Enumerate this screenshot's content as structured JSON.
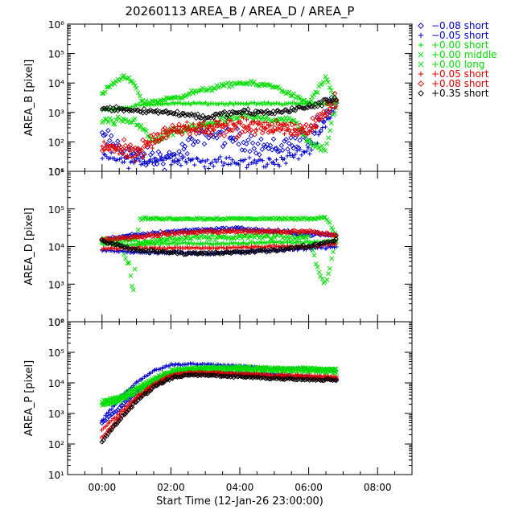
{
  "chart_data": {
    "type": "scatter",
    "title": "20260113 AREA_B / AREA_D / AREA_P",
    "xlabel": "Start Time (12-Jan-26 23:00:00)",
    "x_unit": "hours after start time",
    "xlim": [
      -1.0,
      9.0
    ],
    "x_ticks": [
      {
        "value": 0,
        "label": "00:00"
      },
      {
        "value": 2,
        "label": "02:00"
      },
      {
        "value": 4,
        "label": "04:00"
      },
      {
        "value": 6,
        "label": "06:00"
      },
      {
        "value": 8,
        "label": "08:00"
      }
    ],
    "yscale": "log",
    "legend_position": "right, outside plot",
    "legend": [
      {
        "label": "−0.08 short",
        "color": "#0000cc",
        "symbol": "diamond"
      },
      {
        "label": "−0.05 short",
        "color": "#0000cc",
        "symbol": "plus"
      },
      {
        "label": "+0.00 short",
        "color": "#00dd00",
        "symbol": "plus"
      },
      {
        "label": "+0.00 middle",
        "color": "#00dd00",
        "symbol": "cross"
      },
      {
        "label": "+0.00 long",
        "color": "#00dd00",
        "symbol": "cross"
      },
      {
        "label": "+0.05 short",
        "color": "#dd0000",
        "symbol": "plus"
      },
      {
        "label": "+0.08 short",
        "color": "#dd0000",
        "symbol": "diamond"
      },
      {
        "label": "+0.35 short",
        "color": "#000000",
        "symbol": "diamond"
      }
    ],
    "panels": [
      {
        "ylabel": "AREA_B [pixel]",
        "ylim": [
          10,
          1000000
        ],
        "y_ticks": [
          {
            "value": 10,
            "label": "10¹"
          },
          {
            "value": 100,
            "label": "10²"
          },
          {
            "value": 1000,
            "label": "10³"
          },
          {
            "value": 10000,
            "label": "10⁴"
          },
          {
            "value": 100000,
            "label": "10⁵"
          },
          {
            "value": 1000000,
            "label": "10⁶"
          }
        ],
        "series": [
          {
            "color": "#0000cc",
            "symbol": "diamond",
            "x": [
              0.0,
              1.0,
              2.0,
              3.0,
              4.0,
              5.0,
              6.0,
              6.8
            ],
            "y": [
              150,
              30,
              25,
              200,
              120,
              60,
              150,
              2000
            ],
            "spread": 0.5
          },
          {
            "color": "#0000cc",
            "symbol": "plus",
            "x": [
              0.0,
              1.0,
              2.0,
              3.0,
              4.0,
              5.0,
              6.0,
              6.8
            ],
            "y": [
              30,
              20,
              30,
              20,
              20,
              20,
              50,
              2000
            ],
            "spread": 0.3
          },
          {
            "color": "#00dd00",
            "symbol": "plus",
            "x": [
              0.0,
              0.8,
              1.0,
              2.0,
              3.0,
              4.0,
              5.0,
              6.0,
              6.8
            ],
            "y": [
              1200,
              1500,
              1800,
              2000,
              2000,
              2000,
              2000,
              2000,
              2000
            ],
            "spread": 0.06
          },
          {
            "color": "#00dd00",
            "symbol": "cross",
            "x": [
              0.0,
              0.3,
              0.6,
              0.9,
              1.2,
              2.0,
              3.0,
              4.0,
              5.0,
              6.0,
              6.5,
              6.8
            ],
            "y": [
              4000,
              9000,
              15000,
              12000,
              2000,
              3000,
              6000,
              10000,
              8000,
              2000,
              15000,
              2000
            ],
            "spread": 0.12
          },
          {
            "color": "#00dd00",
            "symbol": "cross",
            "x": [
              0.0,
              0.5,
              1.0,
              1.5,
              2.0,
              3.0,
              4.0,
              5.0,
              5.5,
              6.0,
              6.5,
              6.8
            ],
            "y": [
              500,
              500,
              500,
              100,
              200,
              400,
              700,
              600,
              600,
              100,
              50,
              2000
            ],
            "spread": 0.2
          },
          {
            "color": "#dd0000",
            "symbol": "plus",
            "x": [
              0.0,
              1.0,
              2.0,
              3.0,
              4.0,
              5.0,
              6.0,
              6.8
            ],
            "y": [
              80,
              30,
              300,
              300,
              500,
              300,
              200,
              2000
            ],
            "spread": 0.3
          },
          {
            "color": "#dd0000",
            "symbol": "diamond",
            "x": [
              0.0,
              1.0,
              2.0,
              3.0,
              4.0,
              5.0,
              6.0,
              6.8
            ],
            "y": [
              60,
              60,
              250,
              300,
              250,
              300,
              300,
              3000
            ],
            "spread": 0.35
          },
          {
            "color": "#000000",
            "symbol": "diamond",
            "x": [
              0.0,
              1.0,
              2.0,
              3.0,
              4.0,
              5.0,
              6.0,
              6.8
            ],
            "y": [
              1500,
              1200,
              1000,
              700,
              1000,
              1000,
              1500,
              3000
            ],
            "spread": 0.15
          }
        ]
      },
      {
        "ylabel": "AREA_D [pixel]",
        "ylim": [
          100,
          1000000
        ],
        "y_ticks": [
          {
            "value": 100,
            "label": "10²"
          },
          {
            "value": 1000,
            "label": "10³"
          },
          {
            "value": 10000,
            "label": "10⁴"
          },
          {
            "value": 100000,
            "label": "10⁵"
          },
          {
            "value": 1000000,
            "label": "10⁶"
          }
        ],
        "series": [
          {
            "color": "#0000cc",
            "symbol": "diamond",
            "x": [
              0.0,
              1.0,
              2.0,
              3.0,
              4.0,
              5.0,
              6.0,
              6.8
            ],
            "y": [
              15000,
              20000,
              25000,
              28000,
              30000,
              25000,
              22000,
              20000
            ],
            "spread": 0.06
          },
          {
            "color": "#0000cc",
            "symbol": "plus",
            "x": [
              0.0,
              1.0,
              2.0,
              3.0,
              4.0,
              5.0,
              6.0,
              6.8
            ],
            "y": [
              8000,
              7000,
              7000,
              6500,
              7000,
              8000,
              9000,
              10000
            ],
            "spread": 0.05
          },
          {
            "color": "#00dd00",
            "symbol": "plus",
            "x": [
              0.0,
              1.0,
              2.0,
              3.0,
              4.0,
              5.0,
              6.0,
              6.8
            ],
            "y": [
              12000,
              11000,
              12000,
              12000,
              12000,
              13000,
              13000,
              15000
            ],
            "spread": 0.05
          },
          {
            "color": "#00dd00",
            "symbol": "cross",
            "x": [
              0.0,
              1.0,
              1.1,
              2.0,
              3.0,
              4.0,
              5.0,
              6.0,
              6.5,
              6.8
            ],
            "y": [
              15000,
              15000,
              55000,
              55000,
              55000,
              55000,
              55000,
              55000,
              60000,
              20000
            ],
            "spread": 0.04
          },
          {
            "color": "#00dd00",
            "symbol": "cross",
            "x": [
              0.0,
              0.5,
              0.8,
              0.9,
              1.0,
              2.0,
              3.0,
              4.0,
              5.0,
              6.0,
              6.3,
              6.5,
              6.8
            ],
            "y": [
              15000,
              12000,
              3000,
              500,
              12000,
              16000,
              17000,
              18000,
              18000,
              17000,
              2000,
              1000,
              15000
            ],
            "spread": 0.1
          },
          {
            "color": "#dd0000",
            "symbol": "plus",
            "x": [
              0.0,
              1.0,
              2.0,
              3.0,
              4.0,
              5.0,
              6.0,
              6.8
            ],
            "y": [
              9000,
              9000,
              9000,
              9000,
              9500,
              10000,
              10000,
              12000
            ],
            "spread": 0.05
          },
          {
            "color": "#dd0000",
            "symbol": "diamond",
            "x": [
              0.0,
              1.0,
              2.0,
              3.0,
              4.0,
              5.0,
              6.0,
              6.8
            ],
            "y": [
              15000,
              18000,
              22000,
              25000,
              25000,
              25000,
              25000,
              20000
            ],
            "spread": 0.06
          },
          {
            "color": "#000000",
            "symbol": "diamond",
            "x": [
              0.0,
              1.0,
              2.0,
              3.0,
              4.0,
              5.0,
              6.0,
              6.8
            ],
            "y": [
              14000,
              8000,
              7000,
              6500,
              7000,
              8000,
              10000,
              15000
            ],
            "spread": 0.06
          }
        ]
      },
      {
        "ylabel": "AREA_P [pixel]",
        "ylim": [
          10,
          1000000
        ],
        "y_ticks": [
          {
            "value": 10,
            "label": "10¹"
          },
          {
            "value": 100,
            "label": "10²"
          },
          {
            "value": 1000,
            "label": "10³"
          },
          {
            "value": 10000,
            "label": "10⁴"
          },
          {
            "value": 100000,
            "label": "10⁵"
          },
          {
            "value": 1000000,
            "label": "10⁶"
          }
        ],
        "series": [
          {
            "color": "#0000cc",
            "symbol": "diamond",
            "x": [
              0.0,
              0.5,
              1.0,
              1.5,
              2.0,
              2.5,
              3.0,
              4.0,
              5.0,
              6.0,
              6.8
            ],
            "y": [
              500,
              1500,
              5000,
              12000,
              20000,
              22000,
              22000,
              20000,
              18000,
              15000,
              14000
            ],
            "spread": 0.05
          },
          {
            "color": "#0000cc",
            "symbol": "plus",
            "x": [
              0.0,
              0.5,
              1.0,
              1.5,
              2.0,
              2.5,
              3.0,
              4.0,
              5.0,
              6.0,
              6.8
            ],
            "y": [
              600,
              3000,
              10000,
              25000,
              38000,
              42000,
              40000,
              35000,
              30000,
              28000,
              25000
            ],
            "spread": 0.05
          },
          {
            "color": "#00dd00",
            "symbol": "plus",
            "x": [
              0.0,
              0.5,
              1.0,
              1.5,
              2.0,
              2.5,
              3.0,
              4.0,
              5.0,
              6.0,
              6.8
            ],
            "y": [
              2000,
              3000,
              6000,
              12000,
              22000,
              28000,
              30000,
              30000,
              30000,
              28000,
              27000
            ],
            "spread": 0.05
          },
          {
            "color": "#00dd00",
            "symbol": "cross",
            "x": [
              0.0,
              0.5,
              1.0,
              1.5,
              2.0,
              2.5,
              3.0,
              4.0,
              5.0,
              6.0,
              6.8
            ],
            "y": [
              2500,
              3500,
              7000,
              14000,
              25000,
              30000,
              32000,
              32000,
              30000,
              30000,
              28000
            ],
            "spread": 0.06
          },
          {
            "color": "#00dd00",
            "symbol": "cross",
            "x": [
              0.0,
              0.5,
              1.0,
              1.5,
              2.0,
              2.5,
              3.0,
              4.0,
              5.0,
              6.0,
              6.8
            ],
            "y": [
              1800,
              2500,
              5000,
              10000,
              20000,
              25000,
              27000,
              26000,
              25000,
              24000,
              22000
            ],
            "spread": 0.06
          },
          {
            "color": "#dd0000",
            "symbol": "plus",
            "x": [
              0.0,
              0.5,
              1.0,
              1.5,
              2.0,
              2.5,
              3.0,
              4.0,
              5.0,
              6.0,
              6.8
            ],
            "y": [
              300,
              1000,
              3500,
              9000,
              18000,
              22000,
              22000,
              20000,
              18000,
              17000,
              16000
            ],
            "spread": 0.05
          },
          {
            "color": "#dd0000",
            "symbol": "diamond",
            "x": [
              0.0,
              0.5,
              1.0,
              1.5,
              2.0,
              2.5,
              3.0,
              4.0,
              5.0,
              6.0,
              6.8
            ],
            "y": [
              150,
              700,
              3000,
              8000,
              16000,
              20000,
              20000,
              18000,
              16000,
              15000,
              14000
            ],
            "spread": 0.05
          },
          {
            "color": "#000000",
            "symbol": "diamond",
            "x": [
              0.0,
              0.5,
              1.0,
              1.5,
              2.0,
              2.5,
              3.0,
              4.0,
              5.0,
              6.0,
              6.8
            ],
            "y": [
              120,
              600,
              2500,
              7000,
              14000,
              18000,
              18000,
              16000,
              14000,
              13000,
              12000
            ],
            "spread": 0.05
          }
        ]
      }
    ]
  }
}
